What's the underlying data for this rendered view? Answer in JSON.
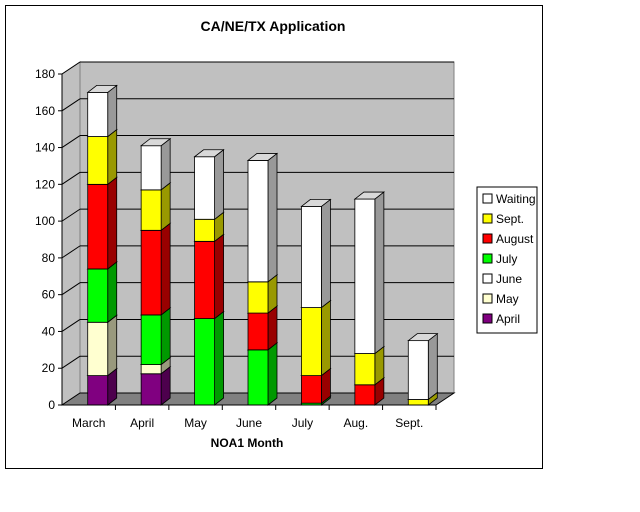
{
  "chart_data": {
    "type": "bar",
    "stacked": true,
    "three_d": true,
    "title": "CA/NE/TX Application",
    "xlabel": "NOA1 Month",
    "ylabel": "",
    "ylim": [
      0,
      180
    ],
    "yticks": [
      0,
      20,
      40,
      60,
      80,
      100,
      120,
      140,
      160,
      180
    ],
    "grid": "horizontal",
    "legend": "right",
    "categories": [
      "March",
      "April",
      "May",
      "June",
      "July",
      "Aug.",
      "Sept."
    ],
    "series": [
      {
        "name": "April",
        "color": "#800080",
        "values": [
          16,
          17,
          0,
          0,
          0,
          0,
          0
        ]
      },
      {
        "name": "May",
        "color": "#ffffd0",
        "values": [
          29,
          5,
          0,
          0,
          0,
          0,
          0
        ]
      },
      {
        "name": "June",
        "color": "#ffffff",
        "values": [
          0,
          0,
          0,
          0,
          0,
          0,
          0
        ]
      },
      {
        "name": "July",
        "color": "#00ff00",
        "values": [
          29,
          27,
          47,
          30,
          1,
          0,
          0
        ]
      },
      {
        "name": "August",
        "color": "#ff0000",
        "values": [
          46,
          46,
          42,
          20,
          15,
          11,
          0
        ]
      },
      {
        "name": "Sept.",
        "color": "#ffff00",
        "values": [
          26,
          22,
          12,
          17,
          37,
          17,
          3
        ]
      },
      {
        "name": "Waiting",
        "color": "#ffffff",
        "values": [
          24,
          24,
          34,
          66,
          55,
          84,
          32
        ]
      }
    ],
    "legend_order": [
      "Waiting",
      "Sept.",
      "August",
      "July",
      "June",
      "May",
      "April"
    ],
    "colors": {
      "wall": "#c0c0c0",
      "floor": "#808080",
      "background": "#ffffff"
    }
  }
}
